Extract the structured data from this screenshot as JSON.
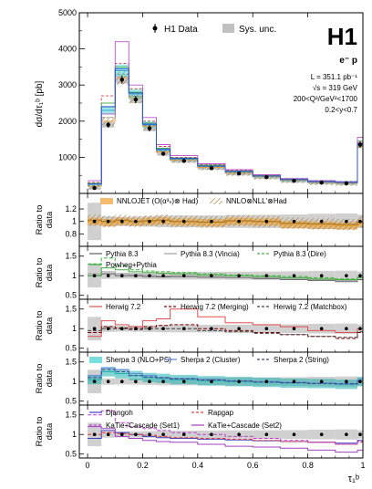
{
  "chart_data": {
    "type": "line",
    "experiment": "H1",
    "xlabel": "τ₁ᵇ",
    "ylabel": "dσ/dτ₁ᵇ [pb]",
    "xlim": [
      -0.03,
      1.0
    ],
    "ylim": [
      0,
      5000
    ],
    "x_ticks": [
      "0",
      "0.2",
      "0.4",
      "0.6",
      "0.8",
      "1"
    ],
    "y_ticks": [
      "1000",
      "2000",
      "3000",
      "4000",
      "5000"
    ],
    "info": [
      "e⁻ p",
      "L = 351.1 pb⁻¹",
      "√s = 319 GeV",
      "200<Q²/GeV²<1700",
      "0.2<y<0.7"
    ],
    "legend": {
      "data": "H1 Data",
      "sys": "Sys. unc."
    },
    "bin_edges": [
      0,
      0.05,
      0.1,
      0.15,
      0.2,
      0.25,
      0.3,
      0.4,
      0.5,
      0.6,
      0.7,
      0.8,
      0.9,
      0.98,
      1.0
    ],
    "data": {
      "x": [
        0.025,
        0.075,
        0.125,
        0.175,
        0.225,
        0.275,
        0.35,
        0.45,
        0.55,
        0.65,
        0.75,
        0.85,
        0.94,
        0.99
      ],
      "y": [
        150,
        1900,
        3150,
        2600,
        1800,
        1100,
        900,
        700,
        550,
        450,
        350,
        300,
        280,
        1350
      ],
      "err": [
        40,
        80,
        110,
        100,
        80,
        60,
        50,
        40,
        35,
        30,
        25,
        25,
        25,
        90
      ]
    },
    "top_series": [
      {
        "color": "#e8a040",
        "values": [
          200,
          2000,
          3200,
          2650,
          1850,
          1150,
          920,
          720,
          560,
          460,
          360,
          300,
          280,
          1300
        ]
      },
      {
        "color": "#3a9ad0",
        "values": [
          250,
          2300,
          3400,
          2750,
          1900,
          1200,
          950,
          750,
          600,
          480,
          380,
          320,
          300,
          1350
        ]
      },
      {
        "color": "#d04040",
        "values": [
          300,
          2700,
          3600,
          2900,
          2000,
          1300,
          1000,
          800,
          640,
          500,
          400,
          340,
          310,
          1400
        ]
      },
      {
        "color": "#50b050",
        "values": [
          280,
          2500,
          3500,
          2800,
          1950,
          1250,
          980,
          780,
          620,
          490,
          390,
          330,
          300,
          1450
        ]
      },
      {
        "color": "#c050d0",
        "values": [
          350,
          2200,
          4200,
          3000,
          2100,
          1350,
          1050,
          820,
          660,
          520,
          410,
          350,
          320,
          1550
        ]
      },
      {
        "color": "#808080",
        "values": [
          220,
          2100,
          3300,
          2700,
          1880,
          1180,
          940,
          740,
          580,
          470,
          370,
          310,
          290,
          1320
        ]
      },
      {
        "color": "#2050d0",
        "values": [
          260,
          2400,
          3450,
          2780,
          1920,
          1230,
          970,
          760,
          610,
          485,
          385,
          325,
          305,
          1380
        ]
      }
    ],
    "ratio_panels": [
      {
        "ylabel": "Ratio to data",
        "ylim": [
          0.6,
          1.45
        ],
        "y_ticks": [
          "0.8",
          "1",
          "1.2"
        ],
        "legend": [
          {
            "label": "NNLOJET (O(α³ₛ)⊗ Had)",
            "style": "band",
            "color": "#f0a030"
          },
          {
            "label": "NNLO⊗NLL'⊗Had",
            "style": "hatch",
            "color": "#a07020"
          }
        ],
        "ratios": [
          {
            "color": "#f0a030",
            "values": [
              1.0,
              0.98,
              1.0,
              0.99,
              1.0,
              1.01,
              0.99,
              0.98,
              1.0,
              0.99,
              0.95,
              0.94,
              0.93,
              0.97
            ],
            "band": 0.06
          },
          {
            "color": "#a07020",
            "values": [
              1.02,
              1.0,
              1.02,
              1.0,
              1.01,
              1.02,
              1.0,
              0.99,
              1.01,
              1.0,
              0.97,
              0.96,
              0.95,
              0.99
            ],
            "band": 0.09
          }
        ]
      },
      {
        "ylabel": "Ratio to data",
        "ylim": [
          0.4,
          1.75
        ],
        "y_ticks": [
          "0.5",
          "1",
          "1.5"
        ],
        "legend": [
          {
            "label": "Pythia 8.3",
            "style": "line",
            "color": "#606060"
          },
          {
            "label": "Pythia 8.3 (Vincia)",
            "style": "line",
            "color": "#a0a0a0"
          },
          {
            "label": "Pythia 8.3 (Dire)",
            "style": "dashed",
            "color": "#40b040"
          },
          {
            "label": "Powheg+Pythia",
            "style": "line",
            "color": "#40b040"
          }
        ],
        "ratios": [
          {
            "color": "#606060",
            "values": [
              1.0,
              1.05,
              1.0,
              1.0,
              0.98,
              0.97,
              0.98,
              0.96,
              0.95,
              0.93,
              0.9,
              0.88,
              0.85,
              0.9
            ]
          },
          {
            "color": "#a0a0a0",
            "values": [
              1.05,
              1.1,
              1.05,
              1.03,
              1.02,
              1.0,
              1.0,
              0.98,
              0.96,
              0.95,
              0.92,
              0.9,
              0.88,
              0.95
            ]
          },
          {
            "color": "#40b040",
            "dashed": true,
            "values": [
              1.3,
              1.45,
              1.25,
              1.15,
              1.12,
              1.1,
              1.08,
              1.05,
              1.02,
              1.0,
              0.98,
              0.95,
              0.92,
              1.0
            ]
          },
          {
            "color": "#40b040",
            "values": [
              1.0,
              1.2,
              1.15,
              1.1,
              1.08,
              1.06,
              1.05,
              1.02,
              1.0,
              0.98,
              0.95,
              0.92,
              0.9,
              0.95
            ]
          }
        ]
      },
      {
        "ylabel": "Ratio to data",
        "ylim": [
          0.4,
          1.75
        ],
        "y_ticks": [
          "0.5",
          "1",
          "1.5"
        ],
        "legend": [
          {
            "label": "Herwig 7.2",
            "style": "line",
            "color": "#e05050"
          },
          {
            "label": "Herwig 7.2 (Merging)",
            "style": "dashed",
            "color": "#800000"
          },
          {
            "label": "Herwig 7.2 (Matchbox)",
            "style": "dashed",
            "color": "#404040"
          }
        ],
        "ratios": [
          {
            "color": "#e05050",
            "values": [
              0.8,
              1.2,
              1.1,
              1.05,
              1.2,
              1.25,
              1.5,
              1.3,
              1.15,
              1.1,
              1.05,
              0.95,
              0.9,
              1.0
            ]
          },
          {
            "color": "#800000",
            "dashed": true,
            "values": [
              0.9,
              1.05,
              1.02,
              1.0,
              1.05,
              1.08,
              1.1,
              1.0,
              0.95,
              0.9,
              0.85,
              0.8,
              0.75,
              0.9
            ]
          },
          {
            "color": "#404040",
            "dashed": true,
            "values": [
              0.95,
              1.0,
              1.0,
              0.98,
              1.0,
              1.0,
              1.0,
              0.95,
              0.92,
              0.88,
              0.85,
              0.8,
              0.78,
              0.92
            ]
          }
        ]
      },
      {
        "ylabel": "Ratio to data",
        "ylim": [
          0.4,
          1.75
        ],
        "y_ticks": [
          "0.5",
          "1",
          "1.5"
        ],
        "legend": [
          {
            "label": "Sherpa 3 (NLO+PS)",
            "style": "band",
            "color": "#40d0d0"
          },
          {
            "label": "Sherpa 2 (Cluster)",
            "style": "line",
            "color": "#6080e0"
          },
          {
            "label": "Sherpa 2 (String)",
            "style": "dashed",
            "color": "#404080"
          }
        ],
        "ratios": [
          {
            "color": "#20b0b0",
            "values": [
              1.05,
              1.25,
              1.2,
              1.15,
              1.1,
              1.08,
              1.05,
              1.02,
              1.0,
              0.98,
              0.96,
              0.95,
              0.93,
              1.0
            ],
            "band": 0.12
          },
          {
            "color": "#6080e0",
            "values": [
              1.15,
              1.35,
              1.3,
              1.2,
              1.15,
              1.1,
              1.08,
              1.05,
              1.02,
              1.0,
              0.98,
              0.96,
              0.95,
              1.05
            ]
          },
          {
            "color": "#404080",
            "dashed": true,
            "values": [
              1.1,
              1.3,
              1.25,
              1.15,
              1.12,
              1.1,
              1.07,
              1.04,
              1.01,
              0.99,
              0.97,
              0.95,
              0.94,
              1.02
            ]
          }
        ]
      },
      {
        "ylabel": "Ratio to data",
        "ylim": [
          0.4,
          1.75
        ],
        "y_ticks": [
          "0.5",
          "1",
          "1.5"
        ],
        "legend": [
          {
            "label": "Djangoh",
            "style": "line",
            "color": "#4040c0"
          },
          {
            "label": "Rapgap",
            "style": "dashed",
            "color": "#e04040"
          },
          {
            "label": "KaTie+Cascade (Set1)",
            "style": "dashed",
            "color": "#c040d0"
          },
          {
            "label": "KaTie+Cascade (Set2)",
            "style": "line",
            "color": "#a040c0"
          }
        ],
        "ratios": [
          {
            "color": "#4040c0",
            "values": [
              0.9,
              1.1,
              1.05,
              1.0,
              0.95,
              0.92,
              0.9,
              0.88,
              0.86,
              0.84,
              0.82,
              0.8,
              0.78,
              0.85
            ]
          },
          {
            "color": "#e04040",
            "dashed": true,
            "values": [
              1.0,
              1.05,
              1.02,
              1.0,
              0.98,
              0.95,
              0.92,
              0.9,
              0.88,
              0.85,
              0.82,
              0.8,
              0.75,
              0.82
            ]
          },
          {
            "color": "#c040d0",
            "dashed": true,
            "values": [
              1.5,
              1.6,
              1.3,
              1.2,
              1.15,
              1.1,
              1.05,
              1.0,
              0.95,
              0.9,
              0.85,
              0.8,
              0.75,
              0.8
            ]
          },
          {
            "color": "#a040c0",
            "values": [
              1.2,
              1.15,
              0.95,
              0.9,
              0.85,
              0.82,
              0.8,
              0.75,
              0.7,
              0.68,
              0.65,
              0.6,
              0.55,
              0.6
            ]
          }
        ]
      }
    ]
  }
}
